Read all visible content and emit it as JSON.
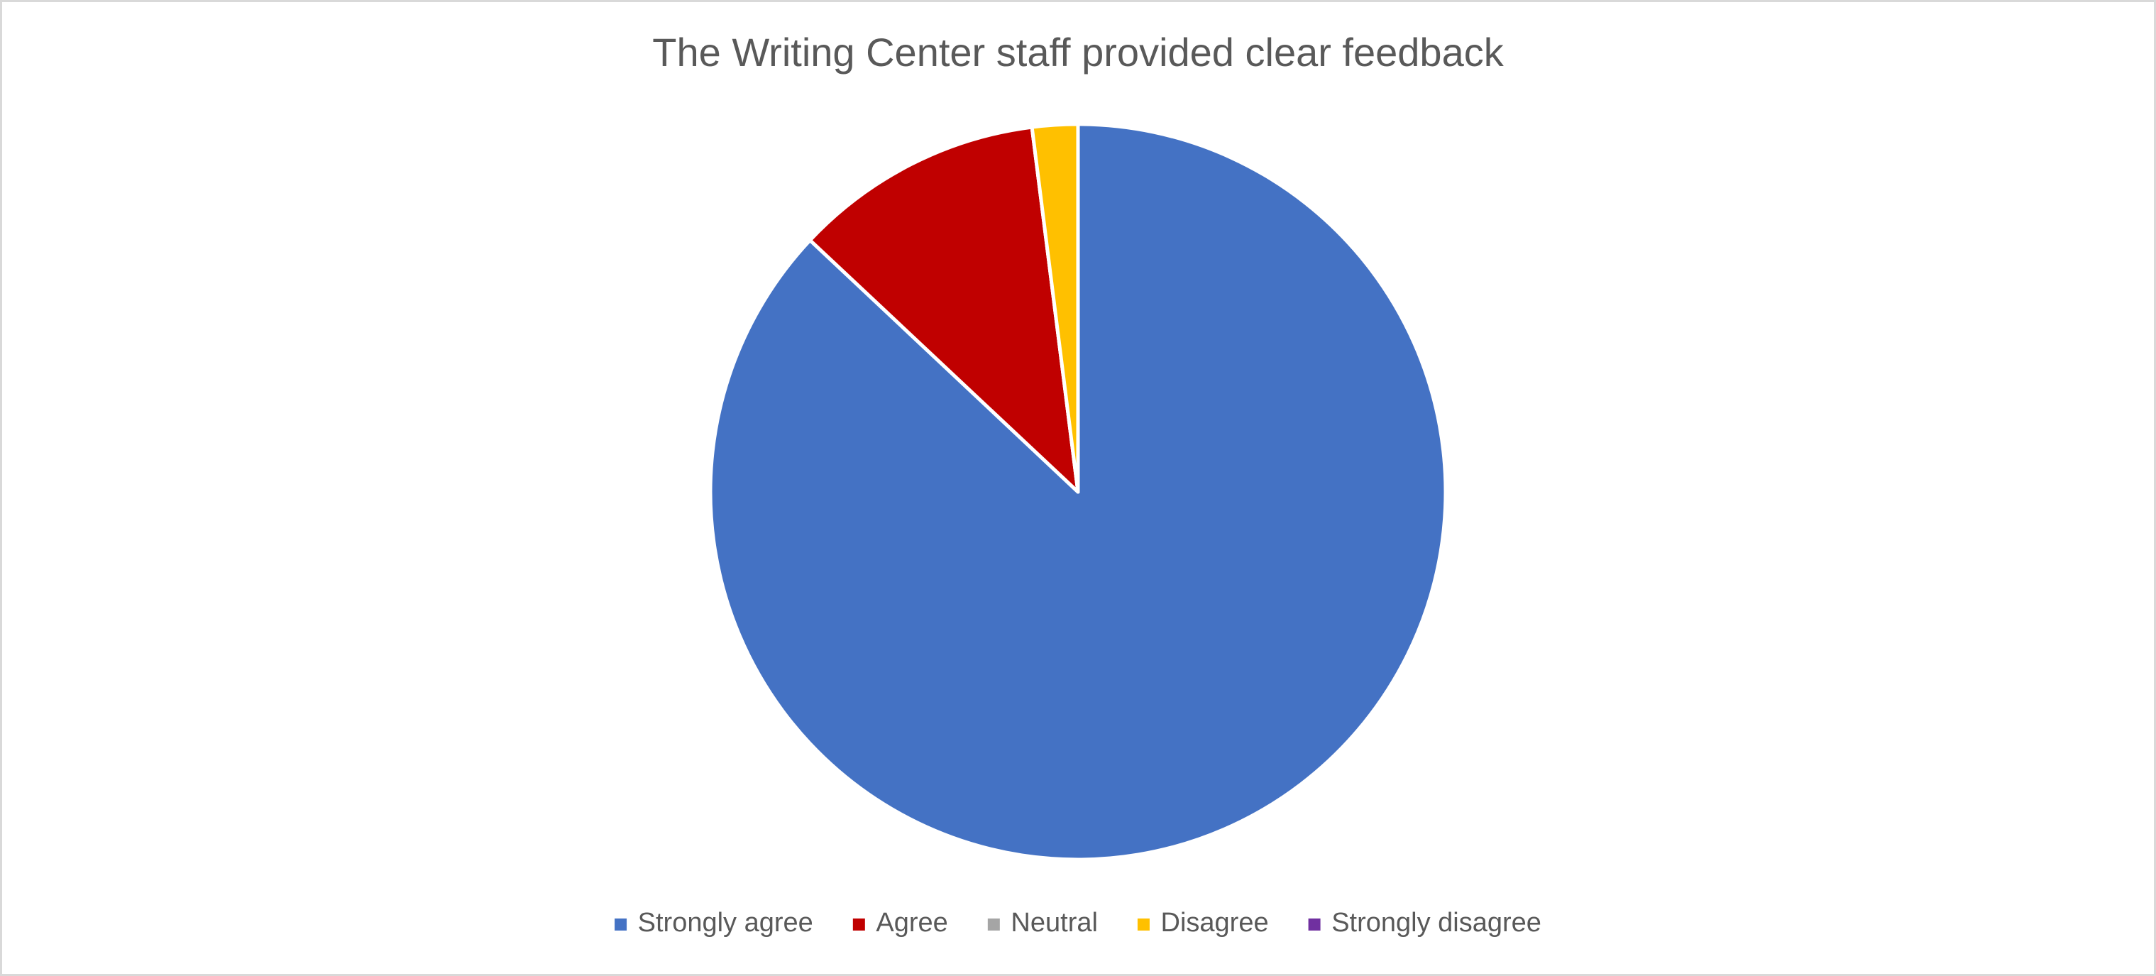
{
  "chart_data": {
    "type": "pie",
    "title": "The Writing Center staff provided clear feedback",
    "categories": [
      "Strongly agree",
      "Agree",
      "Neutral",
      "Disagree",
      "Strongly disagree"
    ],
    "values": [
      87,
      11,
      0,
      2,
      0
    ],
    "colors": [
      "#4472c4",
      "#c00000",
      "#a5a5a5",
      "#ffc000",
      "#7030a0"
    ],
    "legend": "bottom"
  }
}
